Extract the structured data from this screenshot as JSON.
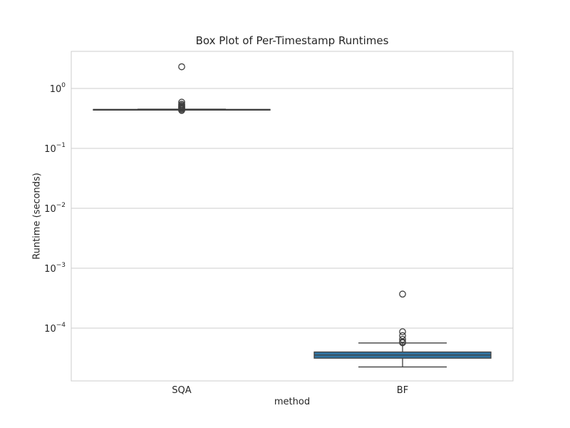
{
  "chart_data": {
    "type": "box",
    "title": "Box Plot of Per-Timestamp Runtimes",
    "xlabel": "method",
    "ylabel": "Runtime (seconds)",
    "y_scale": "log",
    "ylim": [
      1.3e-05,
      4.3
    ],
    "y_ticks": [
      {
        "value": 1,
        "base": "10",
        "exp": "0"
      },
      {
        "value": 0.1,
        "base": "10",
        "exp": "−1"
      },
      {
        "value": 0.01,
        "base": "10",
        "exp": "−2"
      },
      {
        "value": 0.001,
        "base": "10",
        "exp": "−3"
      },
      {
        "value": 0.0001,
        "base": "10",
        "exp": "−4"
      }
    ],
    "grid": true,
    "categories": [
      "SQA",
      "BF"
    ],
    "boxes": [
      {
        "name": "SQA",
        "color": "#c44e52",
        "whisker_low": 0.439,
        "q1": 0.443,
        "median": 0.445,
        "q3": 0.447,
        "whisker_high": 0.452,
        "outliers": [
          2.3,
          0.59,
          0.545,
          0.52,
          0.5,
          0.485,
          0.47,
          0.455,
          0.437,
          0.43
        ]
      },
      {
        "name": "BF",
        "color": "#3274a1",
        "whisker_low": 2.25e-05,
        "q1": 3.15e-05,
        "median": 3.55e-05,
        "q3": 4e-05,
        "whisker_high": 5.65e-05,
        "outliers": [
          0.00037,
          8.7e-05,
          7.5e-05,
          6.5e-05,
          5.9e-05,
          5.7e-05
        ]
      }
    ]
  },
  "colors": {
    "grid": "#cccccc",
    "frame": "#cccccc",
    "line": "#3f3f3f"
  }
}
